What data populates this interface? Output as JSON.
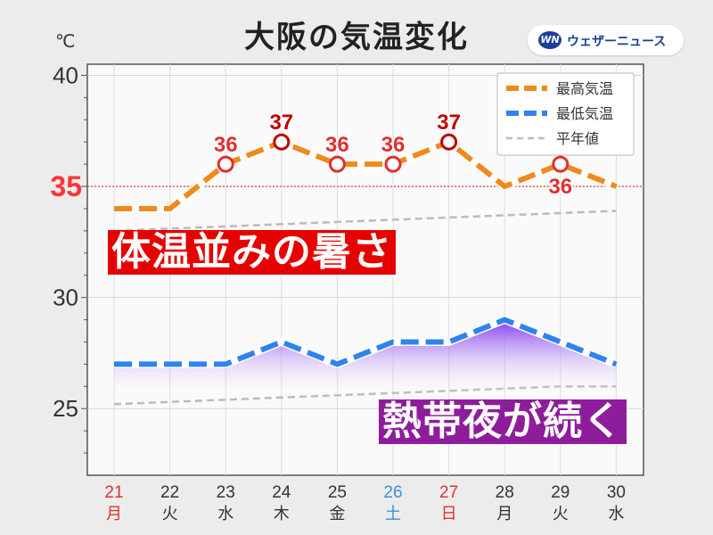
{
  "title": "大阪の気温変化",
  "unit": "℃",
  "brand": {
    "logo": "WN",
    "name": "ウェザーニュース"
  },
  "banners": {
    "hot": "体温並みの暑さ",
    "night": "熱帯夜が続く"
  },
  "highlight_line": {
    "value": 35,
    "label": "35",
    "color": "#ff3333"
  },
  "colors": {
    "high": "#f0891e",
    "low": "#2f83f0",
    "normal": "#bbbbbb",
    "point_red": "#e03030",
    "point_dark": "#c00000",
    "sat": "#3a8fe0",
    "sun": "#e03030",
    "hot_banner": "#e60000",
    "night_banner": "#8e1d9c"
  },
  "chart_data": {
    "type": "line",
    "title": "大阪の気温変化",
    "ylabel": "℃",
    "ylim": [
      22,
      40.5
    ],
    "y_ticks": [
      25,
      30,
      35,
      40
    ],
    "categories": [
      "21",
      "22",
      "23",
      "24",
      "25",
      "26",
      "27",
      "28",
      "29",
      "30"
    ],
    "weekdays": [
      "月",
      "火",
      "水",
      "木",
      "金",
      "土",
      "日",
      "月",
      "火",
      "水"
    ],
    "series": [
      {
        "name": "最高気温",
        "values": [
          34,
          34,
          36,
          37,
          36,
          36,
          37,
          35,
          36,
          35
        ]
      },
      {
        "name": "最低気温",
        "values": [
          27,
          27,
          27,
          28,
          27,
          28,
          28,
          29,
          28,
          27
        ]
      },
      {
        "name": "平年値",
        "values": [
          33.0,
          33.1,
          33.2,
          33.3,
          33.4,
          33.5,
          33.6,
          33.7,
          33.8,
          33.9
        ]
      },
      {
        "name": "平年値",
        "values": [
          25.2,
          25.3,
          25.4,
          25.5,
          25.6,
          25.7,
          25.8,
          25.9,
          26.0,
          26.0
        ]
      }
    ],
    "point_labels": [
      {
        "index": 2,
        "label": "36"
      },
      {
        "index": 3,
        "label": "37"
      },
      {
        "index": 4,
        "label": "36"
      },
      {
        "index": 5,
        "label": "36"
      },
      {
        "index": 6,
        "label": "37"
      },
      {
        "index": 8,
        "label": "36"
      }
    ],
    "legend": [
      "最高気温",
      "最低気温",
      "平年値"
    ],
    "legend_position": "top-right",
    "grid": true
  }
}
